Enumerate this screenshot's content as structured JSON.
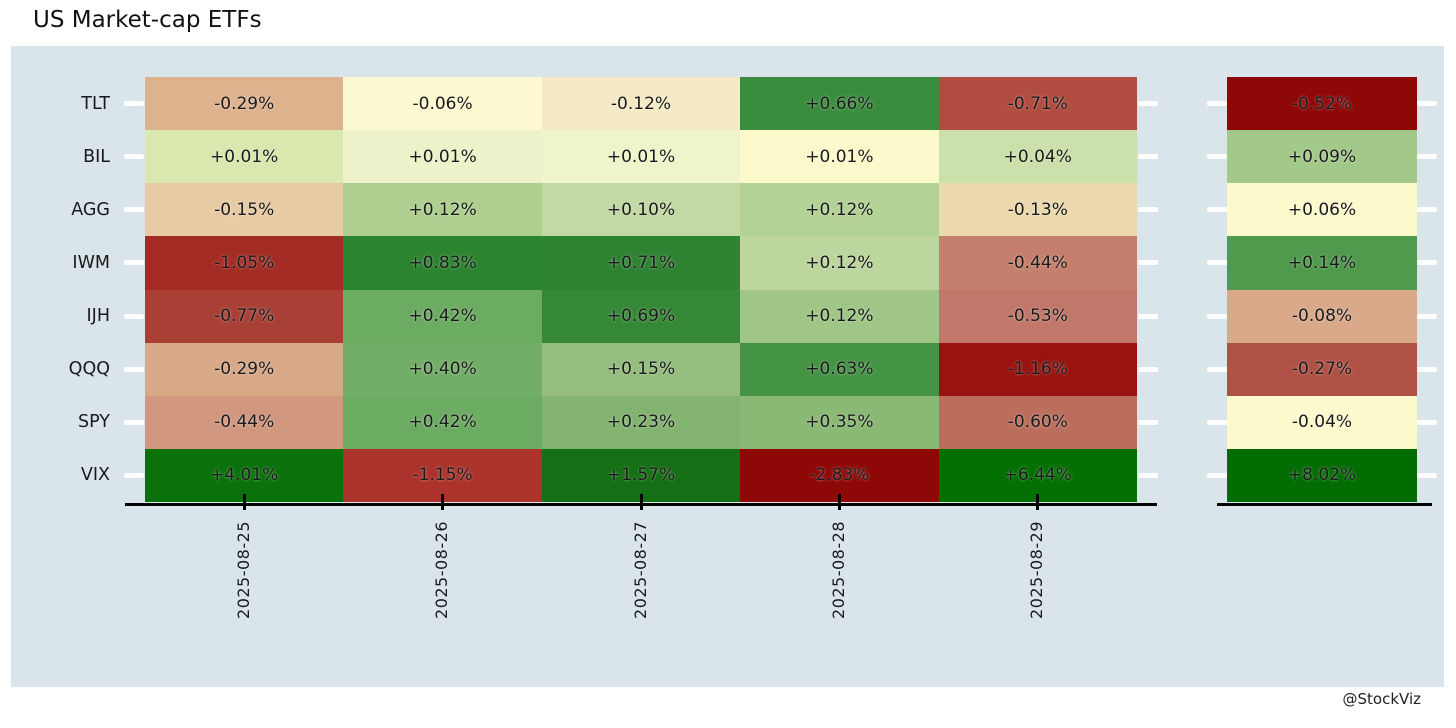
{
  "title": "US Market-cap ETFs",
  "credit": "@StockViz",
  "colors": {
    "canvas_bg": "#ffffff",
    "panel_bg": "#d9e4eb",
    "axis": "#000000",
    "tick_marker": "#ffffff",
    "text": "#1a1a1a"
  },
  "chart_data": {
    "type": "heatmap",
    "title": "US Market-cap ETFs",
    "legend_position": "none",
    "grid": false,
    "x_tick_rotation": 90,
    "categories": [
      "2025-08-25",
      "2025-08-26",
      "2025-08-27",
      "2025-08-28",
      "2025-08-29"
    ],
    "rows": [
      {
        "ticker": "TLT",
        "daily_values": [
          -0.29,
          -0.06,
          -0.12,
          0.66,
          -0.71
        ],
        "daily_labels": [
          "-0.29%",
          "-0.06%",
          "-0.12%",
          "+0.66%",
          "-0.71%"
        ],
        "daily_colors": [
          "#dfb28e",
          "#fcf8cf",
          "#f4ebc6",
          "#3a8d3e",
          "#b04c40"
        ],
        "summary_value": -0.52,
        "summary_label": "-0.52%",
        "summary_color": "#8e0808"
      },
      {
        "ticker": "BIL",
        "daily_values": [
          0.01,
          0.01,
          0.01,
          0.01,
          0.04
        ],
        "daily_labels": [
          "+0.01%",
          "+0.01%",
          "+0.01%",
          "+0.01%",
          "+0.04%"
        ],
        "daily_colors": [
          "#d8e8ae",
          "#edf2ca",
          "#f0f4cb",
          "#fcf9cc",
          "#cce0ab"
        ],
        "summary_value": 0.09,
        "summary_label": "+0.09%",
        "summary_color": "#a3c98a"
      },
      {
        "ticker": "AGG",
        "daily_values": [
          -0.15,
          0.12,
          0.1,
          0.12,
          -0.13
        ],
        "daily_labels": [
          "-0.15%",
          "+0.12%",
          "+0.10%",
          "+0.12%",
          "-0.13%"
        ],
        "daily_colors": [
          "#e7cba4",
          "#aecf90",
          "#c2d9a4",
          "#b3d295",
          "#ecd9ad"
        ],
        "summary_value": 0.06,
        "summary_label": "+0.06%",
        "summary_color": "#fcf9cd"
      },
      {
        "ticker": "IWM",
        "daily_values": [
          -1.05,
          0.83,
          0.71,
          0.12,
          -0.44
        ],
        "daily_labels": [
          "-1.05%",
          "+0.83%",
          "+0.71%",
          "+0.12%",
          "-0.44%"
        ],
        "daily_colors": [
          "#a32c24",
          "#2b8430",
          "#2e8332",
          "#bcd69e",
          "#c57f6c"
        ],
        "summary_value": 0.14,
        "summary_label": "+0.14%",
        "summary_color": "#4f9a4c"
      },
      {
        "ticker": "IJH",
        "daily_values": [
          -0.77,
          0.42,
          0.69,
          0.12,
          -0.53
        ],
        "daily_labels": [
          "-0.77%",
          "+0.42%",
          "+0.69%",
          "+0.12%",
          "-0.53%"
        ],
        "daily_colors": [
          "#a84036",
          "#6cab62",
          "#358936",
          "#9fc687",
          "#c1776a"
        ],
        "summary_value": -0.08,
        "summary_label": "-0.08%",
        "summary_color": "#d9a98a"
      },
      {
        "ticker": "QQQ",
        "daily_values": [
          -0.29,
          0.4,
          0.15,
          0.63,
          -1.16
        ],
        "daily_labels": [
          "-0.29%",
          "+0.40%",
          "+0.15%",
          "+0.63%",
          "-1.16%"
        ],
        "daily_colors": [
          "#d9a887",
          "#72ae67",
          "#94bd7f",
          "#459345",
          "#991310"
        ],
        "summary_value": -0.27,
        "summary_label": "-0.27%",
        "summary_color": "#b05145"
      },
      {
        "ticker": "SPY",
        "daily_values": [
          -0.44,
          0.42,
          0.23,
          0.35,
          -0.6
        ],
        "daily_labels": [
          "-0.44%",
          "+0.42%",
          "+0.23%",
          "+0.35%",
          "-0.60%"
        ],
        "daily_colors": [
          "#d1977f",
          "#6cab62",
          "#83b370",
          "#8ab875",
          "#bc6e5c"
        ],
        "summary_value": -0.04,
        "summary_label": "-0.04%",
        "summary_color": "#fcf9cd"
      },
      {
        "ticker": "VIX",
        "daily_values": [
          4.01,
          -1.15,
          1.57,
          -2.83,
          6.44
        ],
        "daily_labels": [
          "+4.01%",
          "-1.15%",
          "+1.57%",
          "-2.83%",
          "+6.44%"
        ],
        "daily_colors": [
          "#0a710b",
          "#ab332b",
          "#156f14",
          "#8f0808",
          "#027102"
        ],
        "summary_value": 8.02,
        "summary_label": "+8.02%",
        "summary_color": "#036c03"
      }
    ]
  }
}
